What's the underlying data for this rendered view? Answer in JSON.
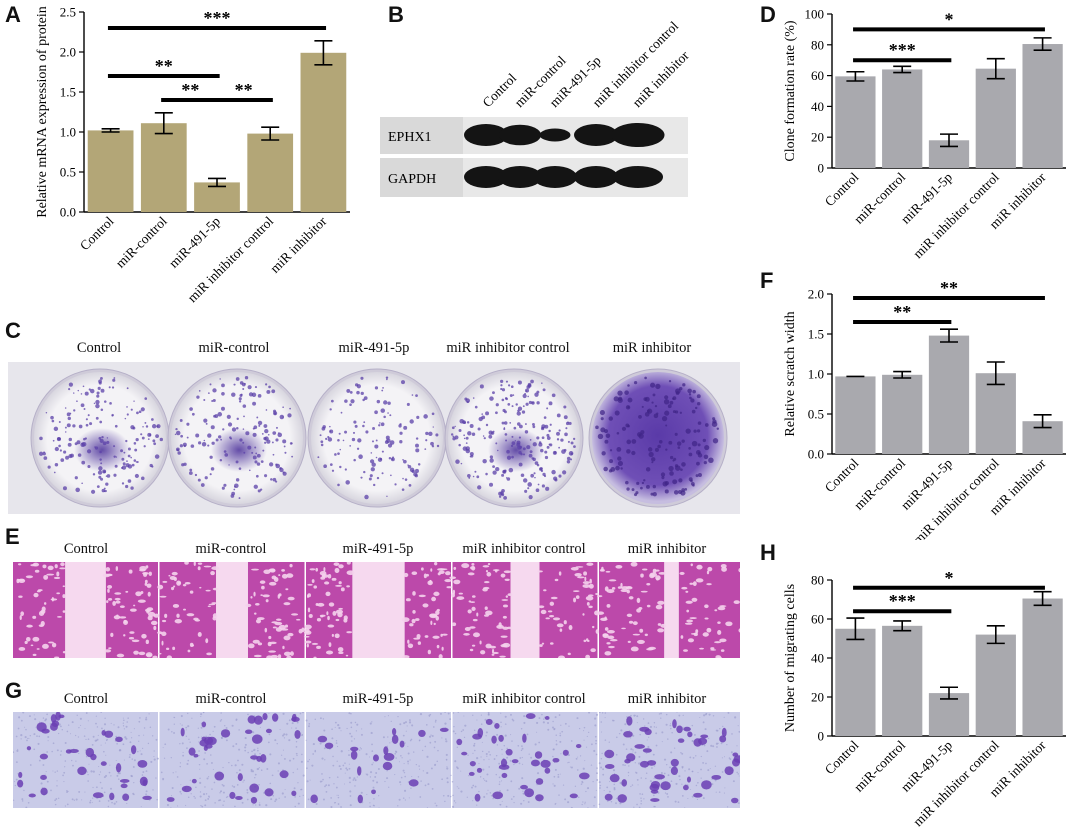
{
  "panels": {
    "A": "A",
    "B": "B",
    "C": "C",
    "D": "D",
    "E": "E",
    "F": "F",
    "G": "G",
    "H": "H"
  },
  "groups": [
    "Control",
    "miR-control",
    "miR-491-5p",
    "miR inhibitor control",
    "miR inhibitor"
  ],
  "blot": {
    "rows": [
      "EPHX1",
      "GAPDH"
    ],
    "band_intensity": {
      "EPHX1": [
        1.0,
        0.9,
        0.35,
        1.0,
        1.15
      ],
      "GAPDH": [
        1.0,
        1.0,
        1.0,
        1.0,
        1.0
      ]
    }
  },
  "colors": {
    "bar_A": "#b3a677",
    "bar_gray": "#a9a9ae",
    "blot_bg": "#d9d9d9",
    "band": "#141414",
    "stain_purple": "#5b40a8",
    "scratch_magenta": "#b3329f",
    "transwell_bg": "#c9cbe8"
  },
  "chart_data": [
    {
      "id": "A",
      "type": "bar",
      "categories": [
        "Control",
        "miR-control",
        "miR-491-5p",
        "miR inhibitor control",
        "miR inhibitor"
      ],
      "values": [
        1.02,
        1.11,
        0.37,
        0.98,
        1.99
      ],
      "errors": [
        0.02,
        0.13,
        0.05,
        0.08,
        0.15
      ],
      "ylabel": "Relative mRNA expression of protein",
      "ylim": [
        0,
        2.5
      ],
      "yticks": [
        "0.0",
        "0.5",
        "1.0",
        "1.5",
        "2.0",
        "2.5"
      ],
      "significance": [
        {
          "from": 0,
          "to": 4,
          "label": "***",
          "y": 2.3
        },
        {
          "from": 0,
          "to": 2,
          "label": "**",
          "y": 1.7
        },
        {
          "from": 1,
          "to": 2,
          "label": "**",
          "y": 1.4
        },
        {
          "from": 2,
          "to": 3,
          "label": "**",
          "y": 1.4
        }
      ]
    },
    {
      "id": "D",
      "type": "bar",
      "categories": [
        "Control",
        "miR-control",
        "miR-491-5p",
        "miR inhibitor control",
        "miR inhibitor"
      ],
      "values": [
        59.5,
        64,
        18,
        64.5,
        80.5
      ],
      "errors": [
        3,
        2,
        4,
        6.5,
        4
      ],
      "ylabel": "Clone formation rate (%)",
      "ylim": [
        0,
        100
      ],
      "yticks": [
        "0",
        "20",
        "40",
        "60",
        "80",
        "100"
      ],
      "significance": [
        {
          "from": 0,
          "to": 4,
          "label": "*",
          "y": 90
        },
        {
          "from": 0,
          "to": 2,
          "label": "***",
          "y": 70
        }
      ]
    },
    {
      "id": "F",
      "type": "bar",
      "categories": [
        "Control",
        "miR-control",
        "miR-491-5p",
        "miR inhibitor control",
        "miR inhibitor"
      ],
      "values": [
        0.97,
        0.99,
        1.48,
        1.01,
        0.41
      ],
      "errors": [
        0.0,
        0.04,
        0.08,
        0.14,
        0.08
      ],
      "ylabel": "Relative scratch width",
      "ylim": [
        0,
        2.0
      ],
      "yticks": [
        "0.0",
        "0.5",
        "1.0",
        "1.5",
        "2.0"
      ],
      "significance": [
        {
          "from": 0,
          "to": 4,
          "label": "**",
          "y": 1.95
        },
        {
          "from": 0,
          "to": 2,
          "label": "**",
          "y": 1.65
        }
      ]
    },
    {
      "id": "H",
      "type": "bar",
      "categories": [
        "Control",
        "miR-control",
        "miR-491-5p",
        "miR inhibitor control",
        "miR inhibitor"
      ],
      "values": [
        55,
        56.5,
        22,
        52,
        70.5
      ],
      "errors": [
        5.5,
        2.5,
        3,
        4.5,
        3.5
      ],
      "ylabel": "Number of migrating cells",
      "ylim": [
        0,
        80
      ],
      "yticks": [
        "0",
        "20",
        "40",
        "60",
        "80"
      ],
      "significance": [
        {
          "from": 0,
          "to": 4,
          "label": "*",
          "y": 76
        },
        {
          "from": 0,
          "to": 2,
          "label": "***",
          "y": 64
        }
      ]
    }
  ]
}
